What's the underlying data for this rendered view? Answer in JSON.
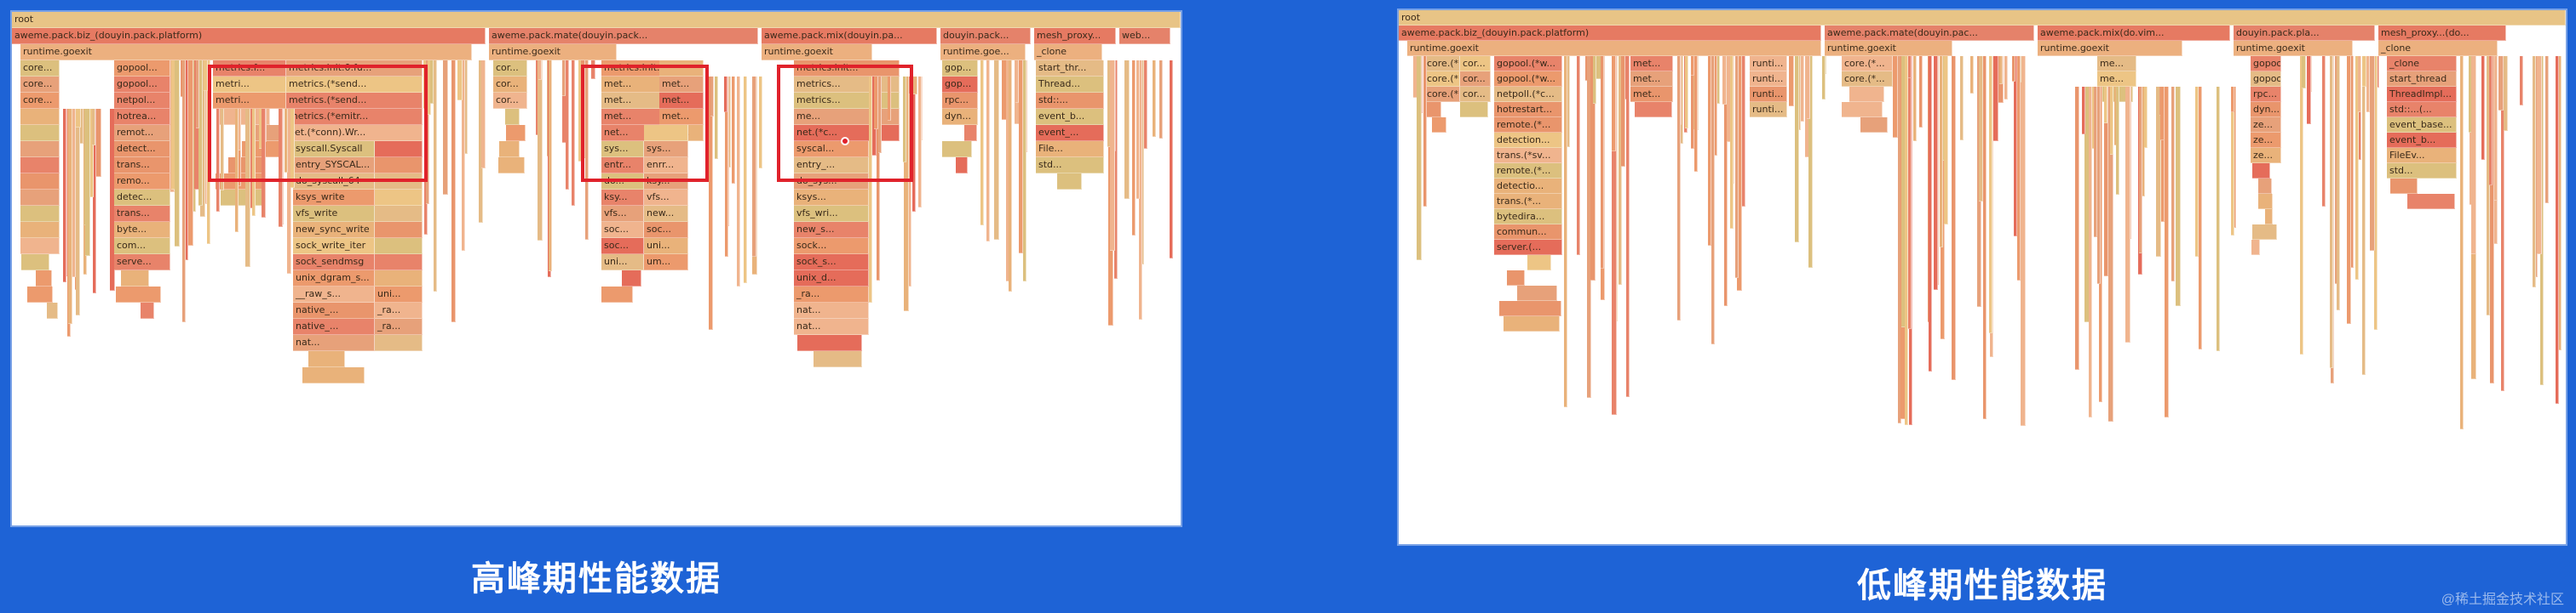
{
  "left_panel": {
    "caption": "高峰期性能数据",
    "root": "root",
    "level1": [
      "aweme.pack.biz_(douyin.pack.platform)",
      "aweme.pack.mate(douyin.pack...",
      "aweme.pack.mix(douyin.pa...",
      "douyin.pack...",
      "mesh_proxy...",
      "web..."
    ],
    "level2": [
      "runtime.goexit",
      "runtime.goexit",
      "runtime.goexit",
      "runtime.goe...",
      "_clone"
    ],
    "col_labels": {
      "c1": [
        "core...",
        "core...",
        "core...",
        "",
        "",
        "",
        "",
        "",
        "",
        "",
        "",
        ""
      ],
      "c2": [
        "gopool...",
        "gopool...",
        "netpol...",
        "hotrea...",
        "remot...",
        "detect...",
        "trans...",
        "remo...",
        "detec...",
        "trans...",
        "byte...",
        "com...",
        "serve..."
      ],
      "box1": [
        "metrics.f...",
        "metri...",
        "metri..."
      ],
      "box1b": [
        "metrics.init.0.fu...",
        "metrics.(*send...",
        "metrics.(*send...",
        "metrics.(*emitr...",
        "net.(*conn).Wr..."
      ],
      "under1": [
        "syscall.Syscall",
        "entry_SYSCAL...",
        "do_syscall_64",
        "ksys_write",
        "vfs_write",
        "new_sync_write",
        "sock_write_iter",
        "sock_sendmsg",
        "unix_dgram_s...",
        "__raw_s...",
        "native_...",
        "native_...",
        "nat..."
      ],
      "under1b": [
        "",
        "",
        "",
        "",
        "",
        "",
        "",
        "",
        "",
        "uni...",
        "_ra...",
        "_ra...",
        ""
      ],
      "c3": [
        "cor...",
        "cor...",
        "cor..."
      ],
      "box2": [
        "metrics.init...",
        "met...",
        "met...",
        "met...",
        "net..."
      ],
      "box2b": [
        "",
        "met...",
        "met...",
        "met...",
        "met..."
      ],
      "under2": [
        "sys...",
        "entr...",
        "do...",
        "ksy...",
        "vfs...",
        "soc...",
        "soc...",
        "uni..."
      ],
      "under2b": [
        "",
        "sys...",
        "enrr...",
        "ksy...",
        "vfs...",
        "new...",
        "soc...",
        "uni...",
        "um..."
      ],
      "box3": [
        "metrics.init...",
        "metrics...",
        "metrics...",
        "me...",
        "net.(*c..."
      ],
      "under3": [
        "syscal...",
        "entry_...",
        "do_sys...",
        "ksys...",
        "vfs_wri...",
        "new_s...",
        "sock...",
        "sock_s...",
        "unix_d...",
        "_ra...",
        "nat...",
        "nat..."
      ],
      "c4": [
        "gop...",
        "gop...",
        "rpc...",
        "dyn..."
      ],
      "c5": [
        "start_thr...",
        "Thread...",
        "std::...",
        "event_b...",
        "event_...",
        "File...",
        "std..."
      ]
    }
  },
  "right_panel": {
    "caption": "低峰期性能数据",
    "root": "root",
    "level1": [
      "aweme.pack.biz_(douyin.pack.platform)",
      "aweme.pack.mate(douyin.pac...",
      "aweme.pack.mix(do.vim...",
      "douyin.pack.pla...",
      "mesh_proxy...(do..."
    ],
    "level2": [
      "runtime.goexit",
      "runtime.goexit",
      "runtime.goexit",
      "runtime.goexit",
      "_clone"
    ],
    "col_labels": {
      "c1": [
        "core.(*...",
        "core.(*...",
        "core.(*..."
      ],
      "c1b": [
        "cor...",
        "cor...",
        "cor..."
      ],
      "c2": [
        "gopool.(*w...",
        "gopool.(*w...",
        "netpoll.(*c...",
        "hotrestart...",
        "remote.(*...",
        "detection...",
        "trans.(*sv...",
        "remote.(*...",
        "detectio...",
        "trans.(*...",
        "bytedira...",
        "commun...",
        "server.(..."
      ],
      "c3": [
        "met...",
        "met...",
        "met..."
      ],
      "c4": [
        "runti...",
        "runti...",
        "runti...",
        "runti..."
      ],
      "c5": [
        "core.(*...",
        "core.(*..."
      ],
      "c6": [
        "me...",
        "me..."
      ],
      "c7": [
        "gopool...",
        "gopool...",
        "rpc...",
        "dyn...",
        "ze...",
        "ze...",
        "ze..."
      ],
      "c8": [
        "_clone",
        "start_thread",
        "ThreadImpl...",
        "std::...(...",
        "event_base...",
        "event_b...",
        "FileEv...",
        "std..."
      ]
    }
  },
  "watermark": "@稀土掘金技术社区"
}
